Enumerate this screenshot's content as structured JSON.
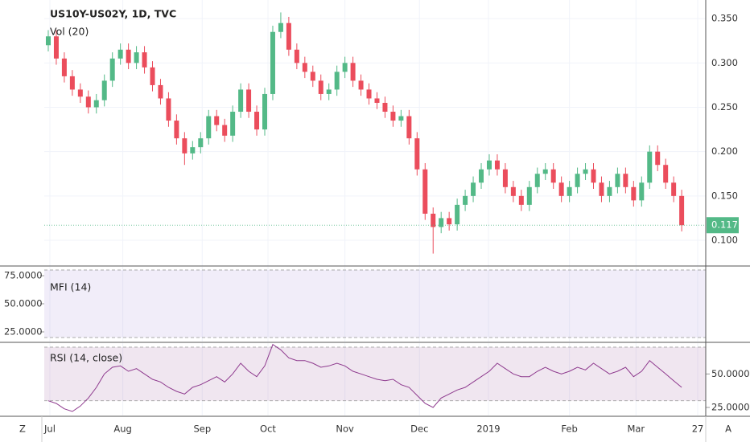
{
  "chart_data": [
    {
      "type": "candlestick",
      "title": "US10Y-US02Y, 1D, TVC",
      "subtitle": "Vol (20)",
      "up_color": "#53b987",
      "down_color": "#eb4d5c",
      "grid": true,
      "xlim": [
        -0.5,
        82
      ],
      "xticks": [
        {
          "value": 0.2,
          "label": "Jul"
        },
        {
          "value": 9.3,
          "label": "Aug"
        },
        {
          "value": 19.2,
          "label": "Sep"
        },
        {
          "value": 27.4,
          "label": "Oct"
        },
        {
          "value": 37,
          "label": "Nov"
        },
        {
          "value": 46.3,
          "label": "Dec"
        },
        {
          "value": 54.9,
          "label": "2019"
        },
        {
          "value": 65,
          "label": "Feb"
        },
        {
          "value": 73.3,
          "label": "Mar"
        },
        {
          "value": 81,
          "label": "27"
        }
      ],
      "ylim": [
        0.071,
        0.371
      ],
      "yticks": [
        {
          "value": 0.1,
          "label": "0.100"
        },
        {
          "value": 0.15,
          "label": "0.150"
        },
        {
          "value": 0.2,
          "label": "0.200"
        },
        {
          "value": 0.25,
          "label": "0.250"
        },
        {
          "value": 0.3,
          "label": "0.300"
        },
        {
          "value": 0.35,
          "label": "0.350"
        }
      ],
      "last_value": 0.117,
      "last_color": "#53b987",
      "open": [
        0.32,
        0.33,
        0.305,
        0.285,
        0.27,
        0.262,
        0.25,
        0.258,
        0.28,
        0.305,
        0.315,
        0.3,
        0.312,
        0.295,
        0.275,
        0.26,
        0.235,
        0.215,
        0.198,
        0.205,
        0.215,
        0.24,
        0.23,
        0.218,
        0.245,
        0.27,
        0.245,
        0.225,
        0.265,
        0.335,
        0.345,
        0.315,
        0.3,
        0.29,
        0.28,
        0.265,
        0.27,
        0.29,
        0.3,
        0.28,
        0.27,
        0.26,
        0.255,
        0.245,
        0.235,
        0.24,
        0.215,
        0.18,
        0.13,
        0.115,
        0.125,
        0.118,
        0.14,
        0.15,
        0.165,
        0.18,
        0.19,
        0.18,
        0.16,
        0.15,
        0.14,
        0.16,
        0.175,
        0.18,
        0.165,
        0.15,
        0.16,
        0.175,
        0.18,
        0.165,
        0.15,
        0.16,
        0.175,
        0.16,
        0.145,
        0.165,
        0.2,
        0.185,
        0.165,
        0.15
      ],
      "close": [
        0.33,
        0.305,
        0.285,
        0.27,
        0.262,
        0.25,
        0.258,
        0.28,
        0.305,
        0.315,
        0.3,
        0.312,
        0.295,
        0.275,
        0.26,
        0.235,
        0.215,
        0.198,
        0.205,
        0.215,
        0.24,
        0.23,
        0.218,
        0.245,
        0.27,
        0.245,
        0.225,
        0.265,
        0.335,
        0.345,
        0.315,
        0.3,
        0.29,
        0.28,
        0.265,
        0.27,
        0.29,
        0.3,
        0.28,
        0.27,
        0.26,
        0.255,
        0.245,
        0.235,
        0.24,
        0.215,
        0.18,
        0.13,
        0.115,
        0.125,
        0.118,
        0.14,
        0.15,
        0.165,
        0.18,
        0.19,
        0.18,
        0.16,
        0.15,
        0.14,
        0.16,
        0.175,
        0.18,
        0.165,
        0.15,
        0.16,
        0.175,
        0.18,
        0.165,
        0.15,
        0.16,
        0.175,
        0.16,
        0.145,
        0.165,
        0.2,
        0.185,
        0.165,
        0.15,
        0.117
      ],
      "high": [
        0.337,
        0.337,
        0.312,
        0.292,
        0.277,
        0.269,
        0.265,
        0.287,
        0.312,
        0.322,
        0.322,
        0.319,
        0.319,
        0.302,
        0.282,
        0.267,
        0.242,
        0.222,
        0.212,
        0.222,
        0.247,
        0.247,
        0.237,
        0.252,
        0.277,
        0.277,
        0.252,
        0.272,
        0.342,
        0.357,
        0.352,
        0.322,
        0.307,
        0.297,
        0.287,
        0.277,
        0.297,
        0.307,
        0.307,
        0.287,
        0.277,
        0.267,
        0.262,
        0.252,
        0.247,
        0.247,
        0.222,
        0.187,
        0.137,
        0.132,
        0.132,
        0.147,
        0.157,
        0.172,
        0.187,
        0.197,
        0.197,
        0.187,
        0.167,
        0.157,
        0.167,
        0.182,
        0.187,
        0.187,
        0.172,
        0.167,
        0.182,
        0.187,
        0.187,
        0.172,
        0.167,
        0.182,
        0.182,
        0.167,
        0.172,
        0.207,
        0.207,
        0.192,
        0.172,
        0.157
      ],
      "low": [
        0.313,
        0.298,
        0.278,
        0.263,
        0.255,
        0.243,
        0.243,
        0.251,
        0.273,
        0.298,
        0.293,
        0.293,
        0.288,
        0.268,
        0.253,
        0.228,
        0.208,
        0.185,
        0.191,
        0.198,
        0.208,
        0.223,
        0.211,
        0.211,
        0.238,
        0.238,
        0.218,
        0.218,
        0.258,
        0.328,
        0.308,
        0.293,
        0.283,
        0.273,
        0.258,
        0.258,
        0.263,
        0.283,
        0.273,
        0.263,
        0.253,
        0.248,
        0.238,
        0.228,
        0.228,
        0.208,
        0.173,
        0.123,
        0.085,
        0.108,
        0.111,
        0.111,
        0.133,
        0.143,
        0.158,
        0.173,
        0.173,
        0.153,
        0.143,
        0.133,
        0.133,
        0.153,
        0.168,
        0.158,
        0.143,
        0.143,
        0.153,
        0.168,
        0.158,
        0.143,
        0.143,
        0.153,
        0.153,
        0.138,
        0.138,
        0.158,
        0.178,
        0.158,
        0.143,
        0.11
      ]
    },
    {
      "type": "band",
      "title": "MFI (14)",
      "color": "#9575cd",
      "band": [
        20,
        80
      ],
      "ylim": [
        16.4,
        82.9
      ],
      "yticks": [
        {
          "value": 25,
          "label": "25.0000"
        },
        {
          "value": 50,
          "label": "50.0000"
        },
        {
          "value": 75,
          "label": "75.0000"
        }
      ]
    },
    {
      "type": "line",
      "title": "RSI (14, close)",
      "color": "#8e3a8e",
      "band": [
        30,
        70
      ],
      "ylim": [
        19,
        73
      ],
      "yticks": [
        {
          "value": 25,
          "label": "25.0000"
        },
        {
          "value": 50,
          "label": "50.0000"
        }
      ],
      "values": [
        30,
        28,
        24,
        22,
        26,
        32,
        40,
        50,
        55,
        56,
        52,
        54,
        50,
        46,
        44,
        40,
        37,
        35,
        40,
        42,
        45,
        48,
        44,
        50,
        58,
        52,
        48,
        56,
        72,
        68,
        62,
        60,
        60,
        58,
        55,
        56,
        58,
        56,
        52,
        50,
        48,
        46,
        45,
        46,
        42,
        40,
        34,
        28,
        25,
        32,
        35,
        38,
        40,
        44,
        48,
        52,
        58,
        54,
        50,
        48,
        48,
        52,
        55,
        52,
        50,
        52,
        55,
        53,
        58,
        54,
        50,
        52,
        55,
        48,
        52,
        60,
        55,
        50,
        45,
        40
      ]
    }
  ],
  "buttons": [
    "Z",
    "A"
  ]
}
